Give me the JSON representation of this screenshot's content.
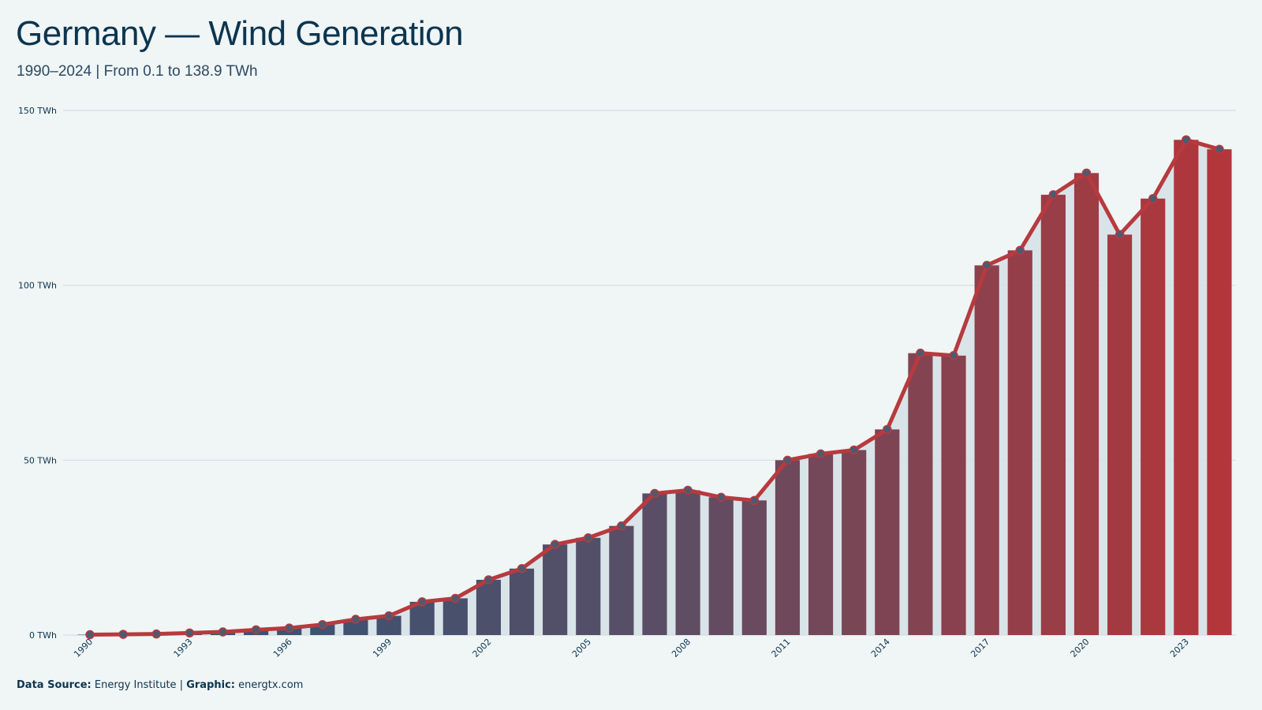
{
  "title": "Germany — Wind Generation",
  "subtitle": "1990–2024 | From 0.1 to 138.9 TWh",
  "footer": {
    "source_label": "Data Source:",
    "source_value": "Energy Institute",
    "separator": "|",
    "graphic_label": "Graphic:",
    "graphic_value": "energtx.com"
  },
  "colors": {
    "background": "#f0f5f5",
    "bar_start": "#2b5478",
    "bar_mid": "#5a4e66",
    "bar_end": "#b3363a",
    "line": "#b73a3e",
    "marker_fill": "#4d5a70",
    "area_fill": "#d5e0e5",
    "grid": "#d6dde0",
    "text": "#0b3550"
  },
  "chart_data": {
    "type": "bar",
    "x": [
      1990,
      1991,
      1992,
      1993,
      1994,
      1995,
      1996,
      1997,
      1998,
      1999,
      2000,
      2001,
      2002,
      2003,
      2004,
      2005,
      2006,
      2007,
      2008,
      2009,
      2010,
      2011,
      2012,
      2013,
      2014,
      2015,
      2016,
      2017,
      2018,
      2019,
      2020,
      2021,
      2022,
      2023,
      2024
    ],
    "values": [
      0.1,
      0.2,
      0.3,
      0.6,
      0.9,
      1.5,
      2.0,
      3.0,
      4.5,
      5.5,
      9.5,
      10.5,
      15.8,
      19.0,
      25.9,
      27.8,
      31.2,
      40.5,
      41.4,
      39.4,
      38.5,
      50.0,
      51.8,
      52.9,
      58.8,
      80.6,
      79.9,
      105.7,
      110.0,
      125.9,
      132.1,
      114.5,
      124.8,
      141.6,
      138.9
    ],
    "series": [
      {
        "type": "bar"
      },
      {
        "type": "line",
        "markers": true,
        "area_fill": true
      }
    ],
    "xticks": [
      "1990",
      "1993",
      "1996",
      "1999",
      "2002",
      "2005",
      "2008",
      "2011",
      "2014",
      "2017",
      "2020",
      "2023"
    ],
    "yticks": [
      "0 TWh",
      "50 TWh",
      "100 TWh",
      "150 TWh"
    ],
    "ytick_values": [
      0,
      50,
      100,
      150
    ],
    "ylim": [
      0,
      150
    ],
    "grid": "horizontal",
    "legend": "none"
  }
}
